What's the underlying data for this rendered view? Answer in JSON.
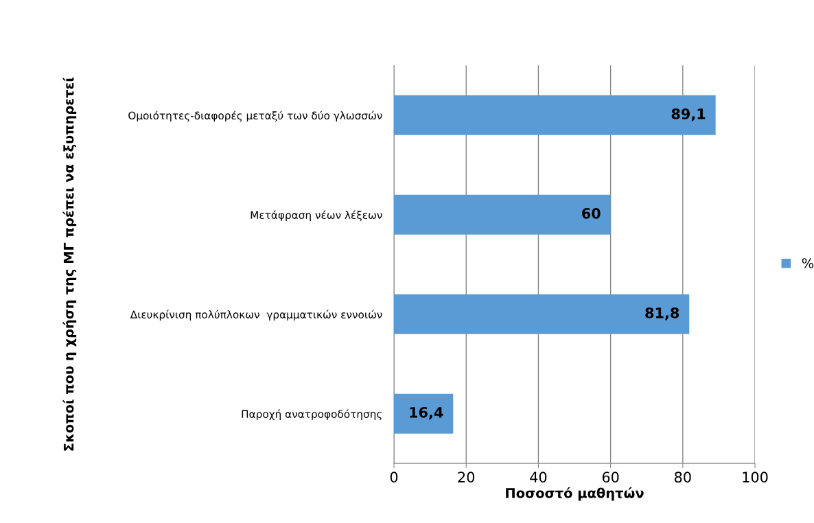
{
  "chart_data": {
    "type": "bar",
    "orientation": "horizontal",
    "categories": [
      "Ομοιότητες-διαφορές μεταξύ των δύο γλωσσών",
      "Μετάφραση νέων λέξεων",
      "Διευκρίνιση πολύπλοκων  γραμματικών εννοιών",
      "Παροχή ανατροφοδότησης"
    ],
    "series": [
      {
        "name": "%",
        "color": "#5b9bd5",
        "values": [
          89.1,
          60,
          81.8,
          16.4
        ],
        "value_labels": [
          "89,1",
          "60",
          "81,8",
          "16,4"
        ]
      }
    ],
    "xlabel": "Ποσοστό μαθητών",
    "ylabel": "Σκοποί που η χρήση της ΜΓ πρέπει να εξυπηρετεί",
    "xlim": [
      0,
      100
    ],
    "xticks": [
      0,
      20,
      40,
      60,
      80,
      100
    ],
    "grid": "x",
    "legend": "right"
  }
}
